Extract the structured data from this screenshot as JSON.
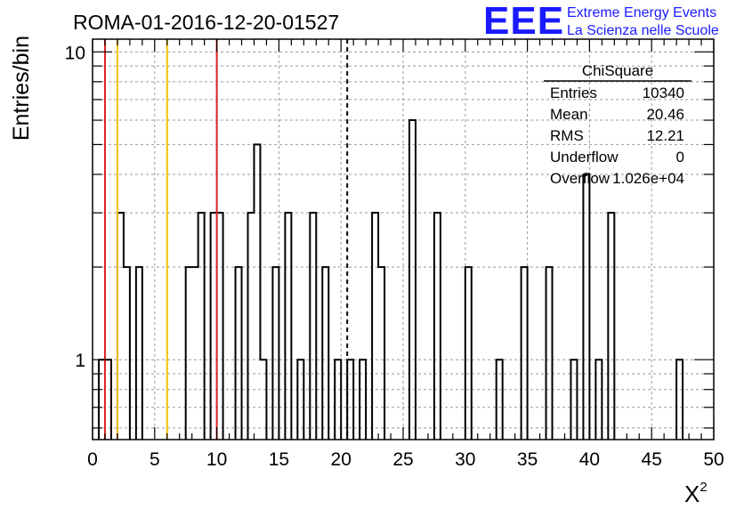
{
  "chart_data": {
    "type": "bar",
    "title": "ROMA-01-2016-12-20-01527",
    "xlabel": "X",
    "xlabel_superscript": "2",
    "ylabel": "Entries/bin",
    "y_scale": "log",
    "xlim": [
      0,
      50
    ],
    "ylim": [
      0.55,
      11
    ],
    "bin_width": 0.5,
    "x_ticks": [
      "0",
      "5",
      "10",
      "15",
      "20",
      "25",
      "30",
      "35",
      "40",
      "45",
      "50"
    ],
    "x_tick_values": [
      0,
      5,
      10,
      15,
      20,
      25,
      30,
      35,
      40,
      45,
      50
    ],
    "y_ticks": [
      "1",
      "10"
    ],
    "y_tick_values": [
      1,
      10
    ],
    "bins": [
      {
        "lo": 0.5,
        "hi": 1.0,
        "count": 1
      },
      {
        "lo": 1.0,
        "hi": 1.5,
        "count": 1
      },
      {
        "lo": 2.0,
        "hi": 2.5,
        "count": 3
      },
      {
        "lo": 2.5,
        "hi": 3.0,
        "count": 2
      },
      {
        "lo": 3.5,
        "hi": 4.0,
        "count": 2
      },
      {
        "lo": 7.5,
        "hi": 8.0,
        "count": 2
      },
      {
        "lo": 8.0,
        "hi": 8.5,
        "count": 2
      },
      {
        "lo": 8.5,
        "hi": 9.0,
        "count": 3
      },
      {
        "lo": 9.5,
        "hi": 10.0,
        "count": 3
      },
      {
        "lo": 10.0,
        "hi": 10.5,
        "count": 3
      },
      {
        "lo": 11.5,
        "hi": 12.0,
        "count": 2
      },
      {
        "lo": 12.5,
        "hi": 13.0,
        "count": 3
      },
      {
        "lo": 13.0,
        "hi": 13.5,
        "count": 5
      },
      {
        "lo": 13.5,
        "hi": 14.0,
        "count": 1
      },
      {
        "lo": 14.5,
        "hi": 15.0,
        "count": 2
      },
      {
        "lo": 15.5,
        "hi": 16.0,
        "count": 3
      },
      {
        "lo": 16.5,
        "hi": 17.0,
        "count": 1
      },
      {
        "lo": 17.5,
        "hi": 18.0,
        "count": 3
      },
      {
        "lo": 18.5,
        "hi": 19.0,
        "count": 2
      },
      {
        "lo": 19.5,
        "hi": 20.0,
        "count": 1
      },
      {
        "lo": 20.5,
        "hi": 21.0,
        "count": 1
      },
      {
        "lo": 21.5,
        "hi": 22.0,
        "count": 1
      },
      {
        "lo": 22.5,
        "hi": 23.0,
        "count": 3
      },
      {
        "lo": 23.0,
        "hi": 23.5,
        "count": 2
      },
      {
        "lo": 25.5,
        "hi": 26.0,
        "count": 6
      },
      {
        "lo": 27.5,
        "hi": 28.0,
        "count": 3
      },
      {
        "lo": 30.0,
        "hi": 30.5,
        "count": 2
      },
      {
        "lo": 32.5,
        "hi": 33.0,
        "count": 1
      },
      {
        "lo": 34.5,
        "hi": 35.0,
        "count": 2
      },
      {
        "lo": 36.5,
        "hi": 37.0,
        "count": 2
      },
      {
        "lo": 38.5,
        "hi": 39.0,
        "count": 1
      },
      {
        "lo": 39.5,
        "hi": 40.0,
        "count": 4
      },
      {
        "lo": 40.5,
        "hi": 41.0,
        "count": 1
      },
      {
        "lo": 41.5,
        "hi": 42.0,
        "count": 3
      },
      {
        "lo": 47.0,
        "hi": 47.5,
        "count": 1
      }
    ],
    "reference_lines": [
      {
        "x": 1.0,
        "color": "#e02020",
        "style": "solid"
      },
      {
        "x": 2.0,
        "color": "#f5c000",
        "style": "solid"
      },
      {
        "x": 6.0,
        "color": "#f5c000",
        "style": "solid"
      },
      {
        "x": 10.0,
        "color": "#e02020",
        "style": "solid"
      },
      {
        "x": 20.5,
        "color": "#000000",
        "style": "dashed"
      }
    ],
    "stats_box": {
      "title": "ChiSquare",
      "rows": [
        {
          "label": "Entries",
          "value": "10340"
        },
        {
          "label": "Mean",
          "value": "20.46"
        },
        {
          "label": "RMS",
          "value": "12.21"
        },
        {
          "label": "Underflow",
          "value": "0"
        },
        {
          "label": "Overflow",
          "value": "1.026e+04"
        }
      ]
    },
    "grid": true
  },
  "logo": {
    "mark": "EEE",
    "line1": "Extreme Energy Events",
    "line2": "La Scienza nelle Scuole",
    "color": "#1a1aff"
  }
}
